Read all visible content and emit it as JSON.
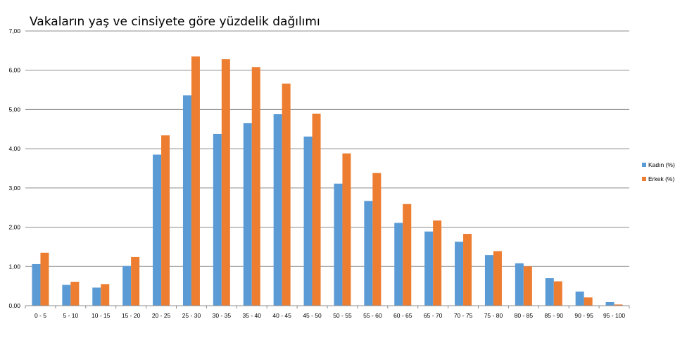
{
  "chart_data": {
    "type": "bar",
    "title": "Vakaların yaş ve cinsiyete göre yüzdelik dağılımı",
    "xlabel": "",
    "ylabel": "",
    "ylim": [
      0,
      7
    ],
    "y_ticks": [
      "0,00",
      "1,00",
      "2,00",
      "3,00",
      "4,00",
      "5,00",
      "6,00",
      "7,00"
    ],
    "categories": [
      "0 - 5",
      "5 - 10",
      "10 - 15",
      "15 - 20",
      "20 - 25",
      "25 - 30",
      "30 - 35",
      "35 - 40",
      "40 - 45",
      "45 - 50",
      "50 - 55",
      "55 - 60",
      "60 - 65",
      "65 - 70",
      "70 - 75",
      "75 - 80",
      "80 - 85",
      "85 - 90",
      "90 - 95",
      "95 - 100"
    ],
    "series": [
      {
        "name": "Kadın (%)",
        "color": "#5b9bd5",
        "values": [
          1.06,
          0.53,
          0.46,
          1.01,
          3.85,
          5.36,
          4.38,
          4.65,
          4.88,
          4.31,
          3.11,
          2.67,
          2.11,
          1.89,
          1.63,
          1.29,
          1.08,
          0.7,
          0.36,
          0.09
        ]
      },
      {
        "name": "Erkek (%)",
        "color": "#ed7d31",
        "values": [
          1.35,
          0.61,
          0.55,
          1.24,
          4.34,
          6.35,
          6.28,
          6.08,
          5.66,
          4.89,
          3.88,
          3.38,
          2.59,
          2.17,
          1.83,
          1.39,
          1.0,
          0.62,
          0.21,
          0.03
        ]
      }
    ],
    "grid": true,
    "legend_position": "right"
  }
}
